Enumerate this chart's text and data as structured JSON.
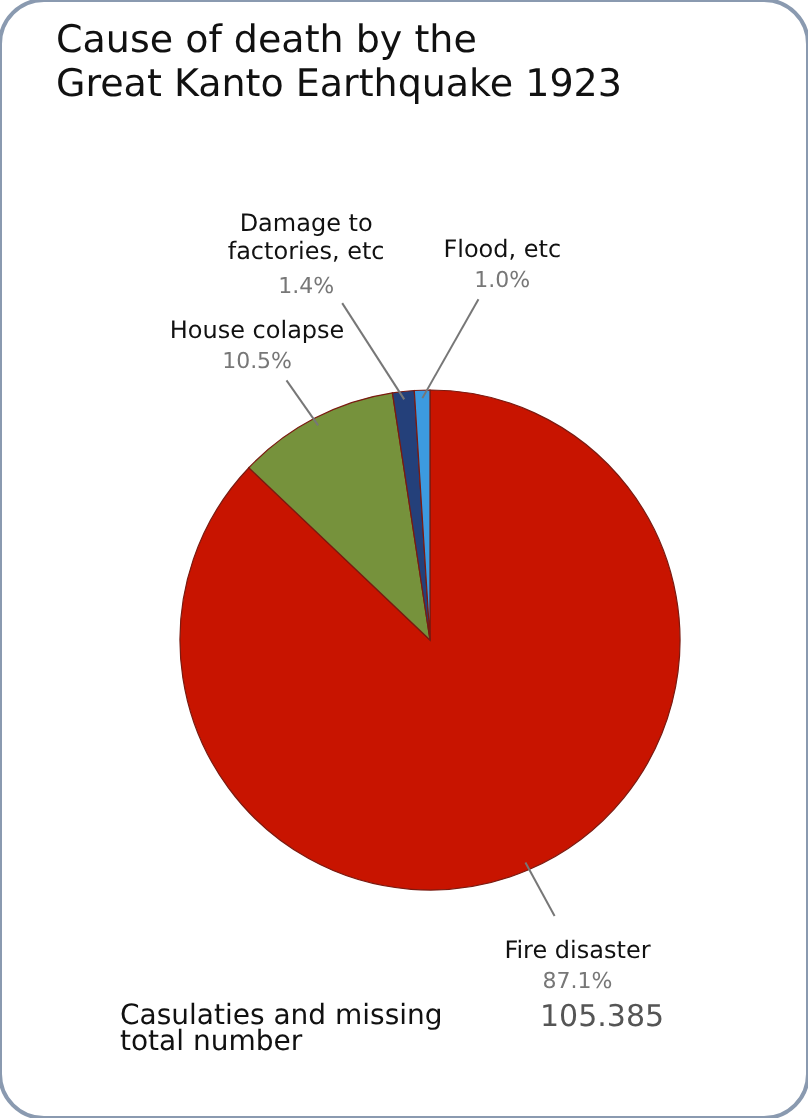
{
  "chart_data": {
    "type": "pie",
    "title": [
      "Cause of death by the",
      "Great Kanto Earthquake 1923"
    ],
    "categories": [
      "Fire disaster",
      "House colapse",
      "Damage to factories, etc",
      "Flood, etc"
    ],
    "values": [
      87.1,
      10.5,
      1.4,
      1.0
    ],
    "value_labels": [
      "87.1%",
      "10.5%",
      "1.4%",
      "1.0%"
    ],
    "colors": [
      "#c81400",
      "#76923c",
      "#24407a",
      "#3c9ae0"
    ],
    "annotations": [
      "Casulaties and missing total number",
      "105.385"
    ]
  }
}
